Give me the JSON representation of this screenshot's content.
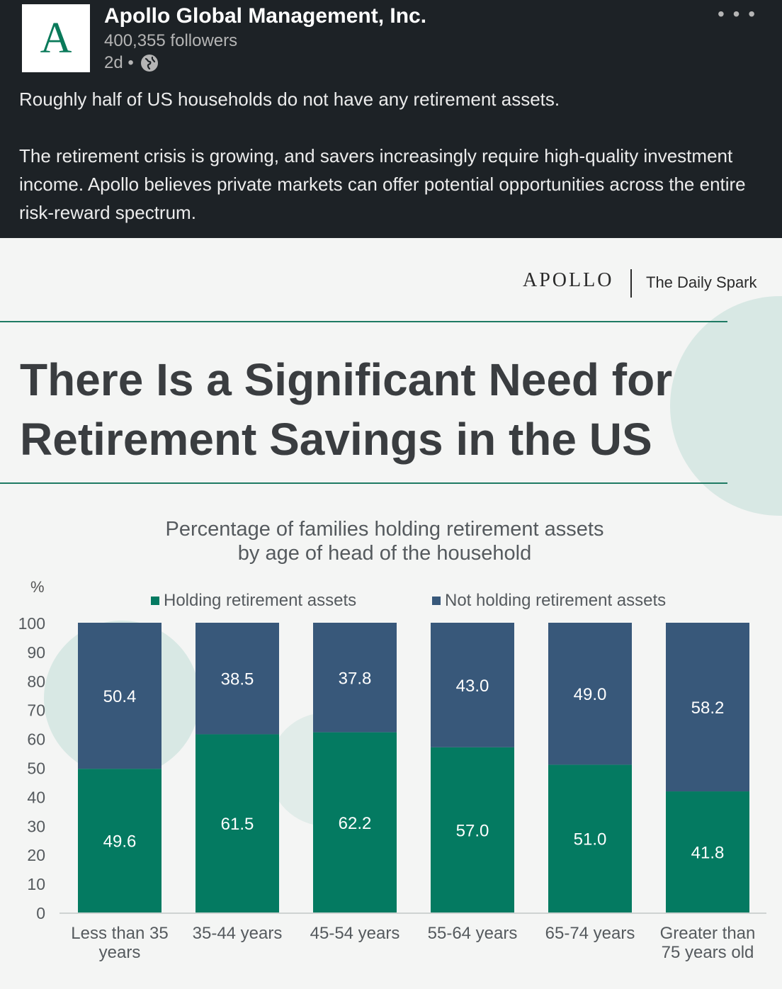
{
  "post": {
    "logo_letter": "A",
    "company": "Apollo Global Management, Inc.",
    "followers": "400,355 followers",
    "age": "2d •",
    "more": "• • •",
    "text_1": "Roughly half of US households do not have any retirement assets.",
    "text_2": "The retirement crisis is growing, and savers increasingly require high-quality investment income. Apollo believes private markets can offer potential opportunities across the entire risk-reward spectrum."
  },
  "infographic": {
    "brand": "APOLLO",
    "series_name": "The Daily Spark",
    "headline_1": "There Is a Significant Need for",
    "headline_2": "Retirement Savings in the US"
  },
  "colors": {
    "holding": "#047a61",
    "not_holding": "#38587a",
    "accent": "#1e7a63"
  },
  "chart_data": {
    "type": "bar",
    "stacked": true,
    "title_1": "Percentage of families holding retirement assets",
    "title_2": "by age of head of the household",
    "ylabel": "%",
    "ylim": [
      0,
      100
    ],
    "yticks": [
      "100",
      "90",
      "80",
      "70",
      "60",
      "50",
      "40",
      "30",
      "20",
      "10",
      "0"
    ],
    "categories": [
      [
        "Less than 35",
        "years"
      ],
      [
        "35-44 years"
      ],
      [
        "45-54 years"
      ],
      [
        "55-64 years"
      ],
      [
        "65-74 years"
      ],
      [
        "Greater than",
        "75 years old"
      ]
    ],
    "series": [
      {
        "name": "Holding retirement assets",
        "values": [
          49.6,
          61.5,
          62.2,
          57.0,
          51.0,
          41.8
        ],
        "labels": [
          "49.6",
          "61.5",
          "62.2",
          "57.0",
          "51.0",
          "41.8"
        ]
      },
      {
        "name": "Not holding retirement assets",
        "values": [
          50.4,
          38.5,
          37.8,
          43.0,
          49.0,
          58.2
        ],
        "labels": [
          "50.4",
          "38.5",
          "37.8",
          "43.0",
          "49.0",
          "58.2"
        ]
      }
    ]
  }
}
